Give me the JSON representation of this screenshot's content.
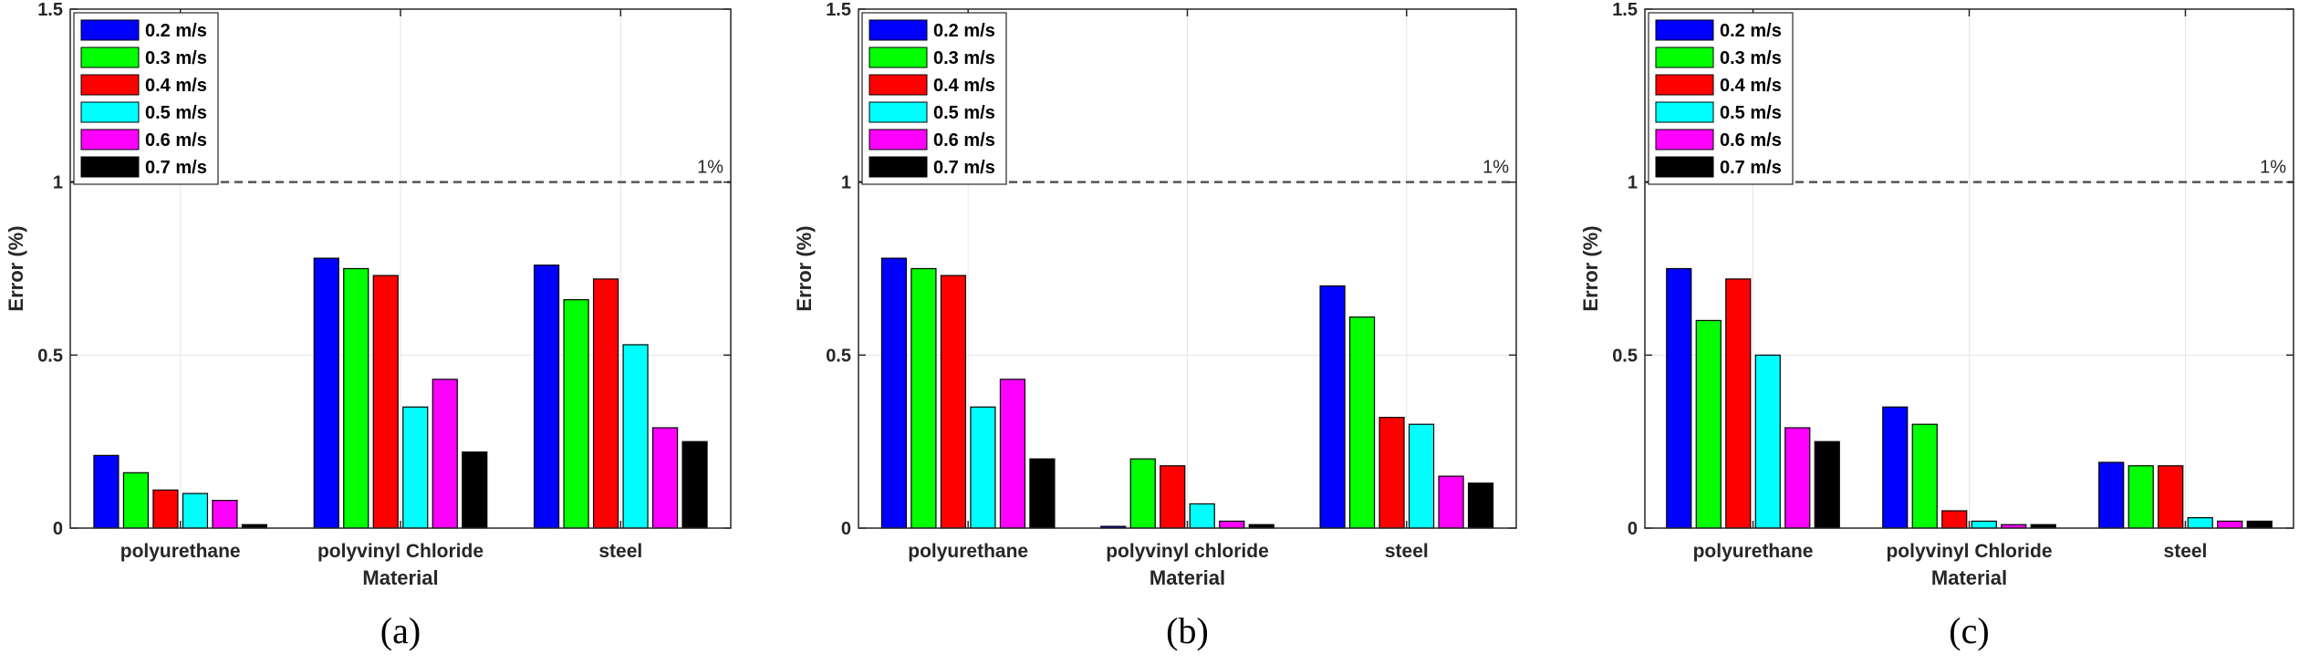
{
  "reference": {
    "value": 1,
    "label": "1%",
    "color": "#555555"
  },
  "legend_placement": "top-left",
  "chart_data": [
    {
      "type": "bar",
      "caption": "(a)",
      "xlabel": "Material",
      "ylabel": "Error (%)",
      "ylim": [
        0,
        1.5
      ],
      "yticks": [
        "0",
        "0.5",
        "1",
        "1.5"
      ],
      "grid": true,
      "categories": [
        "polyurethane",
        "polyvinyl Chloride",
        "steel"
      ],
      "series": [
        {
          "name": "0.2 m/s",
          "color": "#0000ff",
          "values": [
            0.21,
            0.78,
            0.76
          ]
        },
        {
          "name": "0.3 m/s",
          "color": "#00ff00",
          "values": [
            0.16,
            0.75,
            0.66
          ]
        },
        {
          "name": "0.4 m/s",
          "color": "#ff0000",
          "values": [
            0.11,
            0.73,
            0.72
          ]
        },
        {
          "name": "0.5 m/s",
          "color": "#00ffff",
          "values": [
            0.1,
            0.35,
            0.53
          ]
        },
        {
          "name": "0.6 m/s",
          "color": "#ff00ff",
          "values": [
            0.08,
            0.43,
            0.29
          ]
        },
        {
          "name": "0.7 m/s",
          "color": "#000000",
          "values": [
            0.01,
            0.22,
            0.25
          ]
        }
      ]
    },
    {
      "type": "bar",
      "caption": "(b)",
      "xlabel": "Material",
      "ylabel": "Error (%)",
      "ylim": [
        0,
        1.5
      ],
      "yticks": [
        "0",
        "0.5",
        "1",
        "1.5"
      ],
      "grid": true,
      "categories": [
        "polyurethane",
        "polyvinyl chloride",
        "steel"
      ],
      "series": [
        {
          "name": "0.2 m/s",
          "color": "#0000ff",
          "values": [
            0.78,
            0.005,
            0.7
          ]
        },
        {
          "name": "0.3 m/s",
          "color": "#00ff00",
          "values": [
            0.75,
            0.2,
            0.61
          ]
        },
        {
          "name": "0.4 m/s",
          "color": "#ff0000",
          "values": [
            0.73,
            0.18,
            0.32
          ]
        },
        {
          "name": "0.5 m/s",
          "color": "#00ffff",
          "values": [
            0.35,
            0.07,
            0.3
          ]
        },
        {
          "name": "0.6 m/s",
          "color": "#ff00ff",
          "values": [
            0.43,
            0.02,
            0.15
          ]
        },
        {
          "name": "0.7 m/s",
          "color": "#000000",
          "values": [
            0.2,
            0.01,
            0.13
          ]
        }
      ]
    },
    {
      "type": "bar",
      "caption": "(c)",
      "xlabel": "Material",
      "ylabel": "Error (%)",
      "ylim": [
        0,
        1.5
      ],
      "yticks": [
        "0",
        "0.5",
        "1",
        "1.5"
      ],
      "grid": true,
      "categories": [
        "polyurethane",
        "polyvinyl Chloride",
        "steel"
      ],
      "series": [
        {
          "name": "0.2 m/s",
          "color": "#0000ff",
          "values": [
            0.75,
            0.35,
            0.19
          ]
        },
        {
          "name": "0.3 m/s",
          "color": "#00ff00",
          "values": [
            0.6,
            0.3,
            0.18
          ]
        },
        {
          "name": "0.4 m/s",
          "color": "#ff0000",
          "values": [
            0.72,
            0.05,
            0.18
          ]
        },
        {
          "name": "0.5 m/s",
          "color": "#00ffff",
          "values": [
            0.5,
            0.02,
            0.03
          ]
        },
        {
          "name": "0.6 m/s",
          "color": "#ff00ff",
          "values": [
            0.29,
            0.01,
            0.02
          ]
        },
        {
          "name": "0.7 m/s",
          "color": "#000000",
          "values": [
            0.25,
            0.01,
            0.02
          ]
        }
      ]
    }
  ]
}
